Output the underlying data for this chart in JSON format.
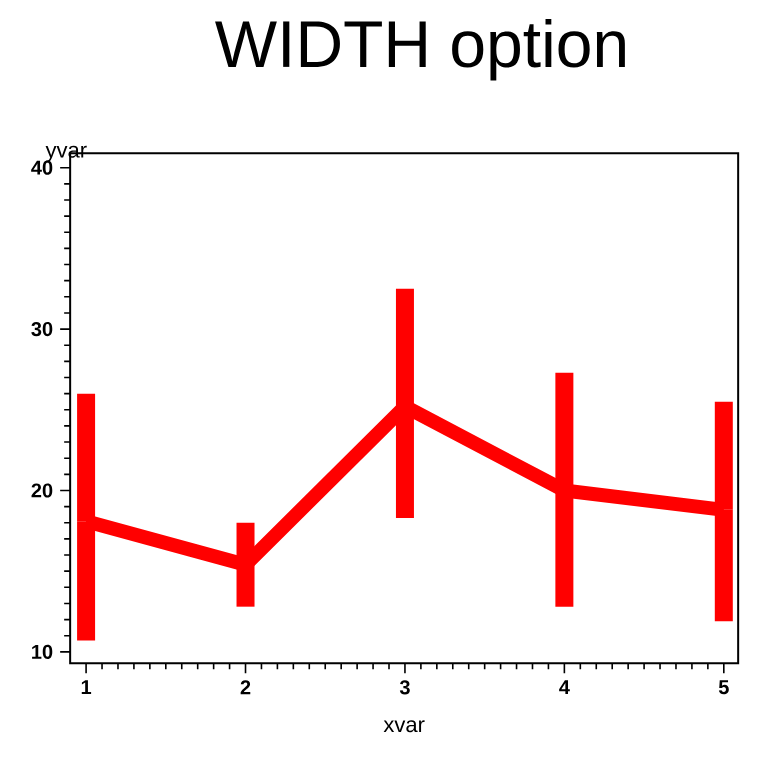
{
  "chart_data": {
    "type": "line",
    "title": "WIDTH option",
    "xlabel": "xvar",
    "ylabel": "yvar",
    "x": [
      1,
      2,
      3,
      4,
      5
    ],
    "series": [
      {
        "color": "#ff0000",
        "values": [
          18.1,
          15.4,
          25.2,
          20.0,
          18.8
        ],
        "errors": [
          [
            10.7,
            26.0
          ],
          [
            12.8,
            18.0
          ],
          [
            18.3,
            32.5
          ],
          [
            12.8,
            27.3
          ],
          [
            11.9,
            25.5
          ]
        ]
      }
    ],
    "xlim": [
      0.9,
      5.09
    ],
    "ylim": [
      9.3,
      40.9
    ],
    "xticks": [
      1,
      2,
      3,
      4,
      5
    ],
    "yticks": [
      10,
      20,
      30,
      40
    ],
    "grid": false,
    "marker": "none",
    "line_style": "solid"
  }
}
